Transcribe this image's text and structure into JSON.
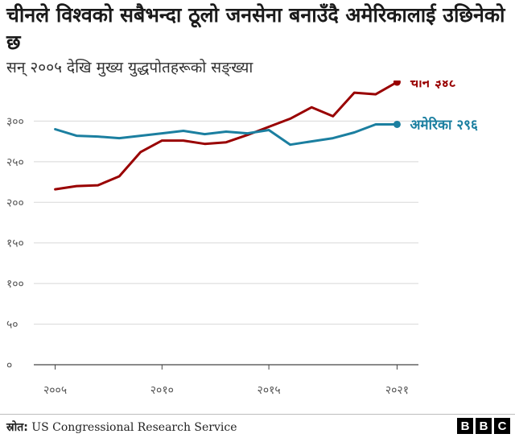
{
  "title": "चीनले विश्वको सबैभन्दा ठूलो जनसेना बनाउँदै अमेरिकालाई उछिनेको छ",
  "subtitle": "सन् २००५ देखि मुख्य युद्धपोतहरूको सङ्ख्या",
  "source_label": "स्रोत:",
  "source_text": "US Congressional Research Service",
  "logo_letters": [
    "B",
    "B",
    "C"
  ],
  "chart_data": {
    "type": "line",
    "ylim": [
      0,
      350
    ],
    "yticks": [
      0,
      50,
      100,
      150,
      200,
      250,
      300
    ],
    "ytick_labels": [
      "०",
      "५०",
      "१००",
      "१५०",
      "२००",
      "२५०",
      "३००"
    ],
    "xlim": [
      2004,
      2022
    ],
    "xticks": [
      2005,
      2010,
      2015,
      2021
    ],
    "xtick_labels": [
      "२००५",
      "२०१०",
      "२०१५",
      "२०२१"
    ],
    "grid": true,
    "series": [
      {
        "name": "चीन",
        "end_label": "चीन ३४८",
        "color": "#990000",
        "x": [
          2005,
          2006,
          2007,
          2008,
          2009,
          2010,
          2011,
          2012,
          2013,
          2014,
          2015,
          2016,
          2017,
          2018,
          2019,
          2020,
          2021
        ],
        "y": [
          216,
          220,
          221,
          232,
          262,
          276,
          276,
          272,
          274,
          283,
          293,
          303,
          317,
          306,
          335,
          333,
          348
        ]
      },
      {
        "name": "अमेरिका",
        "end_label": "अमेरिका २९६",
        "color": "#1b7fa0",
        "x": [
          2005,
          2006,
          2007,
          2008,
          2009,
          2010,
          2011,
          2012,
          2013,
          2014,
          2015,
          2016,
          2017,
          2018,
          2019,
          2020,
          2021
        ],
        "y": [
          290,
          282,
          281,
          279,
          282,
          285,
          288,
          284,
          287,
          285,
          289,
          271,
          275,
          279,
          286,
          296,
          296
        ]
      }
    ]
  }
}
